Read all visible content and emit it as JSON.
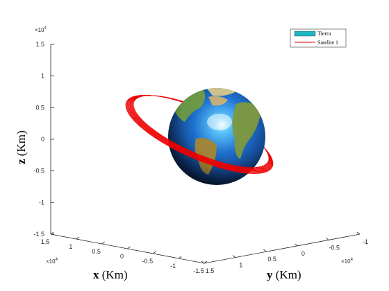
{
  "chart_data": {
    "type": "3d-surface-line",
    "title": "",
    "xlabel": "x (Km)",
    "ylabel": "y (Km)",
    "zlabel": "z (Km)",
    "axis_label_letters": {
      "x": "x",
      "y": "y",
      "z": "z"
    },
    "axis_unit": "(Km)",
    "exponent": "×10^4",
    "exponent_base": "×10",
    "exponent_power": "4",
    "xlim": [
      -1.5,
      1.5
    ],
    "ylim": [
      -1,
      1.5
    ],
    "zlim": [
      -1.5,
      1.5
    ],
    "x_ticks": [
      "1.5",
      "1",
      "0.5",
      "0",
      "-0.5",
      "-1",
      "-1.5"
    ],
    "y_ticks": [
      "1.5",
      "1",
      "0.5",
      "0",
      "-0.5",
      "-1"
    ],
    "z_ticks": [
      "1.5",
      "1",
      "0.5",
      "0",
      "-0.5",
      "-1",
      "-1.5"
    ],
    "grid": false,
    "legend_position": "top-right",
    "series": [
      {
        "name": "Tierra",
        "kind": "sphere-surface",
        "radius": 6371,
        "color": "#1fb5c4"
      },
      {
        "name": "Satelite 1",
        "kind": "orbit-line",
        "color": "#ee0000",
        "semi_axis": [
          10500,
          7500
        ]
      }
    ]
  }
}
